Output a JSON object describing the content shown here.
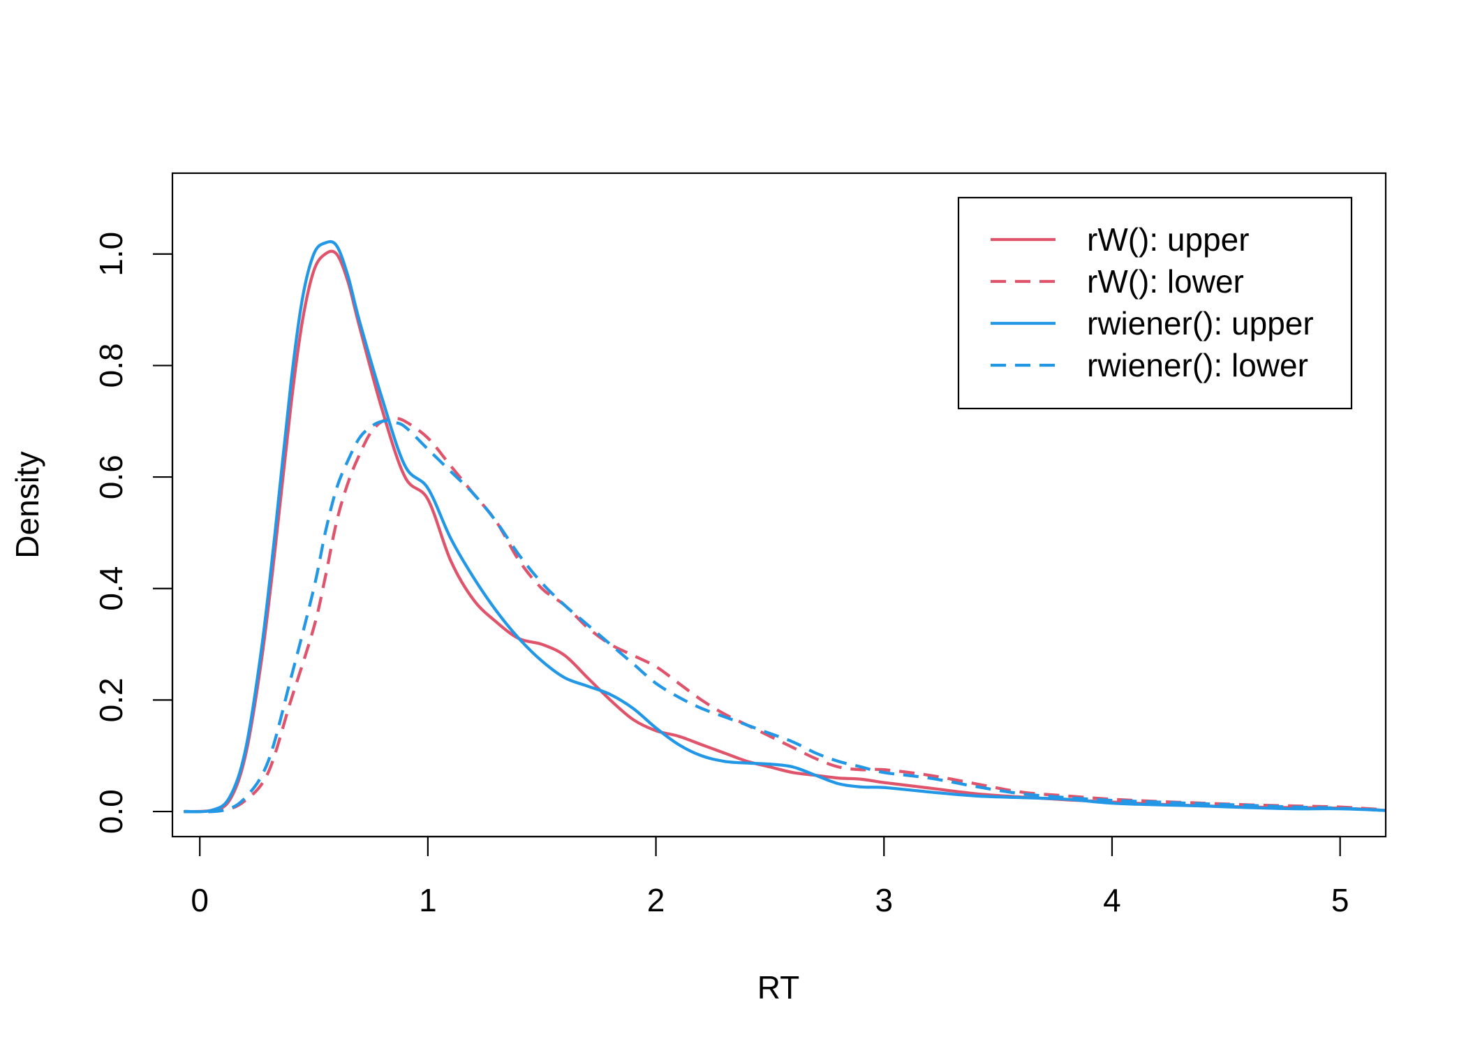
{
  "chart_data": {
    "type": "line",
    "title": "",
    "xlabel": "RT",
    "ylabel": "Density",
    "xlim": [
      -0.12,
      5.2
    ],
    "ylim": [
      -0.045,
      1.145
    ],
    "x_ticks": [
      0,
      1,
      2,
      3,
      4,
      5
    ],
    "x_tick_labels": [
      "0",
      "1",
      "2",
      "3",
      "4",
      "5"
    ],
    "y_ticks": [
      0.0,
      0.2,
      0.4,
      0.6,
      0.8,
      1.0
    ],
    "y_tick_labels": [
      "0.0",
      "0.2",
      "0.4",
      "0.6",
      "0.8",
      "1.0"
    ],
    "grid": false,
    "legend_position": "top-right",
    "series": [
      {
        "name": "rW(): upper",
        "color": "#DF536B",
        "dash": "solid",
        "x": [
          -0.07,
          0.05,
          0.13,
          0.2,
          0.27,
          0.33,
          0.4,
          0.45,
          0.5,
          0.55,
          0.6,
          0.65,
          0.7,
          0.8,
          0.9,
          1.0,
          1.1,
          1.2,
          1.3,
          1.4,
          1.5,
          1.6,
          1.7,
          1.8,
          1.9,
          2.0,
          2.1,
          2.2,
          2.3,
          2.4,
          2.5,
          2.6,
          2.7,
          2.8,
          2.9,
          3.0,
          3.2,
          3.4,
          3.6,
          3.8,
          4.0,
          4.2,
          4.4,
          4.6,
          4.8,
          5.0,
          5.2
        ],
        "y": [
          0.0,
          0.002,
          0.02,
          0.1,
          0.27,
          0.47,
          0.73,
          0.88,
          0.97,
          1.0,
          1.0,
          0.95,
          0.87,
          0.72,
          0.6,
          0.56,
          0.45,
          0.38,
          0.34,
          0.31,
          0.3,
          0.28,
          0.24,
          0.2,
          0.165,
          0.145,
          0.135,
          0.12,
          0.105,
          0.09,
          0.08,
          0.07,
          0.065,
          0.06,
          0.058,
          0.052,
          0.042,
          0.032,
          0.026,
          0.021,
          0.017,
          0.013,
          0.01,
          0.008,
          0.007,
          0.006,
          0.002
        ]
      },
      {
        "name": "rW(): lower",
        "color": "#DF536B",
        "dash": "dashed",
        "x": [
          -0.07,
          0.1,
          0.2,
          0.3,
          0.4,
          0.5,
          0.55,
          0.6,
          0.65,
          0.7,
          0.75,
          0.8,
          0.85,
          0.9,
          1.0,
          1.1,
          1.2,
          1.3,
          1.4,
          1.5,
          1.6,
          1.7,
          1.8,
          1.9,
          2.0,
          2.1,
          2.2,
          2.3,
          2.4,
          2.5,
          2.6,
          2.7,
          2.8,
          2.9,
          3.0,
          3.2,
          3.4,
          3.6,
          3.8,
          4.0,
          4.2,
          4.4,
          4.6,
          4.8,
          5.0,
          5.2
        ],
        "y": [
          0.0,
          0.002,
          0.02,
          0.07,
          0.2,
          0.33,
          0.42,
          0.52,
          0.59,
          0.64,
          0.68,
          0.7,
          0.705,
          0.7,
          0.67,
          0.62,
          0.57,
          0.52,
          0.45,
          0.4,
          0.37,
          0.33,
          0.3,
          0.28,
          0.26,
          0.23,
          0.2,
          0.175,
          0.155,
          0.135,
          0.115,
          0.095,
          0.08,
          0.075,
          0.075,
          0.065,
          0.05,
          0.035,
          0.028,
          0.022,
          0.018,
          0.015,
          0.012,
          0.01,
          0.008,
          0.003
        ]
      },
      {
        "name": "rwiener(): upper",
        "color": "#2297E6",
        "dash": "solid",
        "x": [
          -0.07,
          0.05,
          0.13,
          0.2,
          0.27,
          0.33,
          0.4,
          0.45,
          0.5,
          0.55,
          0.6,
          0.65,
          0.7,
          0.8,
          0.9,
          1.0,
          1.1,
          1.2,
          1.3,
          1.4,
          1.5,
          1.6,
          1.7,
          1.8,
          1.9,
          2.0,
          2.1,
          2.2,
          2.3,
          2.4,
          2.5,
          2.6,
          2.7,
          2.8,
          2.9,
          3.0,
          3.2,
          3.4,
          3.6,
          3.8,
          4.0,
          4.2,
          4.4,
          4.6,
          4.8,
          5.0,
          5.2
        ],
        "y": [
          0.0,
          0.002,
          0.025,
          0.11,
          0.29,
          0.5,
          0.77,
          0.92,
          1.0,
          1.02,
          1.015,
          0.96,
          0.88,
          0.74,
          0.62,
          0.58,
          0.49,
          0.42,
          0.36,
          0.31,
          0.27,
          0.24,
          0.225,
          0.21,
          0.185,
          0.15,
          0.12,
          0.1,
          0.09,
          0.087,
          0.085,
          0.08,
          0.065,
          0.05,
          0.044,
          0.043,
          0.035,
          0.028,
          0.025,
          0.022,
          0.015,
          0.012,
          0.01,
          0.007,
          0.005,
          0.005,
          0.002
        ]
      },
      {
        "name": "rwiener(): lower",
        "color": "#2297E6",
        "dash": "dashed",
        "x": [
          -0.07,
          0.1,
          0.2,
          0.3,
          0.4,
          0.5,
          0.55,
          0.6,
          0.65,
          0.7,
          0.75,
          0.8,
          0.85,
          0.9,
          1.0,
          1.1,
          1.2,
          1.3,
          1.4,
          1.5,
          1.6,
          1.7,
          1.8,
          1.9,
          2.0,
          2.1,
          2.2,
          2.3,
          2.4,
          2.5,
          2.6,
          2.7,
          2.8,
          2.9,
          3.0,
          3.2,
          3.4,
          3.6,
          3.8,
          4.0,
          4.2,
          4.4,
          4.6,
          4.8,
          5.0,
          5.2
        ],
        "y": [
          0.0,
          0.002,
          0.025,
          0.09,
          0.24,
          0.4,
          0.5,
          0.58,
          0.63,
          0.67,
          0.69,
          0.7,
          0.698,
          0.69,
          0.65,
          0.61,
          0.57,
          0.52,
          0.46,
          0.41,
          0.37,
          0.335,
          0.3,
          0.265,
          0.23,
          0.205,
          0.185,
          0.17,
          0.155,
          0.14,
          0.125,
          0.105,
          0.09,
          0.08,
          0.07,
          0.06,
          0.045,
          0.032,
          0.025,
          0.02,
          0.017,
          0.014,
          0.011,
          0.008,
          0.006,
          0.002
        ]
      }
    ]
  }
}
